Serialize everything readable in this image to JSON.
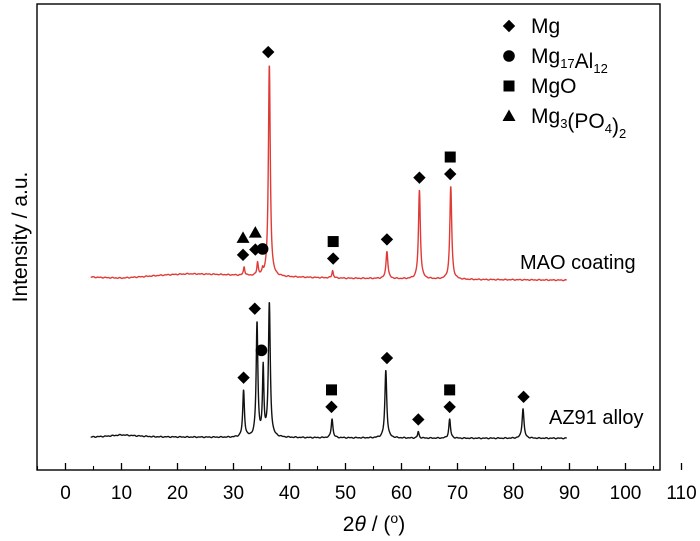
{
  "chart_data": {
    "type": "line",
    "xlabel": {
      "pre": "2",
      "theta": "θ",
      "post": " / (",
      "deg": "o",
      "close": ")"
    },
    "ylabel": "Intensity / a.u.",
    "xlim": [
      -5,
      110
    ],
    "xticks": [
      0,
      10,
      20,
      30,
      40,
      50,
      60,
      70,
      80,
      90,
      100,
      110
    ],
    "yticks": false,
    "grid": false,
    "legend_position": "top-right",
    "legend": [
      {
        "marker": "diamond",
        "parts": [
          {
            "t": "Mg"
          }
        ]
      },
      {
        "marker": "circle",
        "parts": [
          {
            "t": "Mg"
          },
          {
            "t": "17",
            "sub": true
          },
          {
            "t": "Al"
          },
          {
            "t": "12",
            "sub": true
          }
        ]
      },
      {
        "marker": "square",
        "parts": [
          {
            "t": "MgO"
          }
        ]
      },
      {
        "marker": "triangle",
        "parts": [
          {
            "t": "Mg"
          },
          {
            "t": "3",
            "sub": true
          },
          {
            "t": "(PO"
          },
          {
            "t": "4",
            "sub": true
          },
          {
            "t": ")"
          },
          {
            "t": "2",
            "sub": true
          }
        ]
      }
    ],
    "colors": {
      "MAO coating": "#e03a36",
      "AZ91 alloy": "#111111"
    },
    "series": [
      {
        "name": "MAO coating",
        "baseline": [
          [
            4.5,
            0.0
          ],
          [
            6,
            -0.2
          ],
          [
            10,
            -0.5
          ],
          [
            14,
            0.2
          ],
          [
            18,
            1.0
          ],
          [
            22,
            1.5
          ],
          [
            26,
            1.3
          ],
          [
            30,
            0.9
          ],
          [
            33,
            0.5
          ],
          [
            36,
            0.2
          ],
          [
            40,
            0.0
          ],
          [
            45,
            -0.3
          ],
          [
            50,
            -0.6
          ],
          [
            55,
            -0.7
          ],
          [
            60,
            -0.9
          ],
          [
            65,
            -1.0
          ],
          [
            70,
            -1.2
          ],
          [
            80,
            -1.3
          ],
          [
            89.5,
            -1.5
          ]
        ],
        "peaks": [
          {
            "x": 31.9,
            "h": 4,
            "w": 0.15
          },
          {
            "x": 34.3,
            "h": 6,
            "w": 0.15
          },
          {
            "x": 35.2,
            "h": 2,
            "w": 0.12
          },
          {
            "x": 36.4,
            "h": 100,
            "w": 0.2
          },
          {
            "x": 47.7,
            "h": 3.5,
            "w": 0.15
          },
          {
            "x": 57.4,
            "h": 13,
            "w": 0.2
          },
          {
            "x": 63.2,
            "h": 42,
            "w": 0.2
          },
          {
            "x": 68.8,
            "h": 44,
            "w": 0.2
          }
        ],
        "markers": [
          {
            "x": 31.7,
            "stack": [
              "triangle",
              "diamond"
            ]
          },
          {
            "x": 33.9,
            "stack": [
              "triangle",
              "diamond"
            ]
          },
          {
            "x": 35.2,
            "stack": [
              "circle"
            ]
          },
          {
            "x": 36.2,
            "stack": [
              "diamond"
            ]
          },
          {
            "x": 47.8,
            "stack": [
              "square",
              "diamond"
            ]
          },
          {
            "x": 57.4,
            "stack": [
              "diamond"
            ]
          },
          {
            "x": 63.2,
            "stack": [
              "diamond"
            ]
          },
          {
            "x": 68.7,
            "stack": [
              "square",
              "diamond"
            ]
          }
        ]
      },
      {
        "name": "AZ91 alloy",
        "baseline": [
          [
            4.5,
            0.0
          ],
          [
            7,
            0.3
          ],
          [
            10,
            1.0
          ],
          [
            13,
            0.5
          ],
          [
            16,
            0.1
          ],
          [
            20,
            0.0
          ],
          [
            30,
            -0.2
          ],
          [
            40,
            -0.3
          ],
          [
            50,
            -0.4
          ],
          [
            60,
            -0.5
          ],
          [
            70,
            -0.6
          ],
          [
            80,
            -0.6
          ],
          [
            89.5,
            -0.6
          ]
        ],
        "peaks": [
          {
            "x": 31.8,
            "h": 22,
            "w": 0.18
          },
          {
            "x": 34.2,
            "h": 54,
            "w": 0.18
          },
          {
            "x": 35.3,
            "h": 32,
            "w": 0.15
          },
          {
            "x": 36.4,
            "h": 63,
            "w": 0.2
          },
          {
            "x": 47.6,
            "h": 9,
            "w": 0.18
          },
          {
            "x": 57.2,
            "h": 32,
            "w": 0.2
          },
          {
            "x": 63.0,
            "h": 3,
            "w": 0.15
          },
          {
            "x": 68.6,
            "h": 9,
            "w": 0.18
          },
          {
            "x": 81.7,
            "h": 14,
            "w": 0.2
          }
        ],
        "markers": [
          {
            "x": 31.8,
            "stack": [
              "diamond"
            ]
          },
          {
            "x": 33.8,
            "stack": [
              "diamond"
            ]
          },
          {
            "x": 35.0,
            "stack": [
              "circle"
            ]
          },
          {
            "x": 47.5,
            "stack": [
              "square",
              "diamond"
            ]
          },
          {
            "x": 57.4,
            "stack": [
              "diamond"
            ]
          },
          {
            "x": 63.0,
            "stack": [
              "diamond"
            ]
          },
          {
            "x": 68.6,
            "stack": [
              "square",
              "diamond"
            ]
          },
          {
            "x": 81.8,
            "stack": [
              "diamond"
            ]
          }
        ]
      }
    ]
  }
}
